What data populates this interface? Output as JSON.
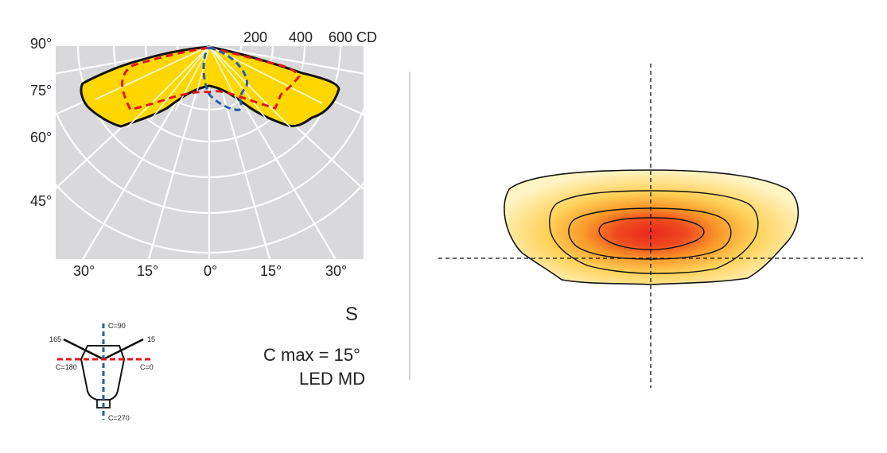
{
  "polar": {
    "angle_labels_left": [
      "90°",
      "75°",
      "60°",
      "45°"
    ],
    "angle_labels_bottom": [
      "30°",
      "15°",
      "0°",
      "15°",
      "30°"
    ],
    "intensity_labels": [
      "200",
      "400",
      "600 CD"
    ],
    "colors": {
      "background": "#d9d9db",
      "fill": "#ffd700",
      "outline": "#111111",
      "red_dash": "#e3151b",
      "blue_dash": "#1f5fb0",
      "grid": "#ffffff"
    }
  },
  "legend": {
    "labels": [
      "165",
      "15",
      "C=90",
      "C=180",
      "C=0",
      "C=270"
    ]
  },
  "info": {
    "symbol": "S",
    "cmax": "C max = 15°",
    "source": "LED MD"
  },
  "isolux": {
    "colors": {
      "outer": "#fde98f",
      "mid": "#ffb52e",
      "core": "#e8281e"
    }
  }
}
